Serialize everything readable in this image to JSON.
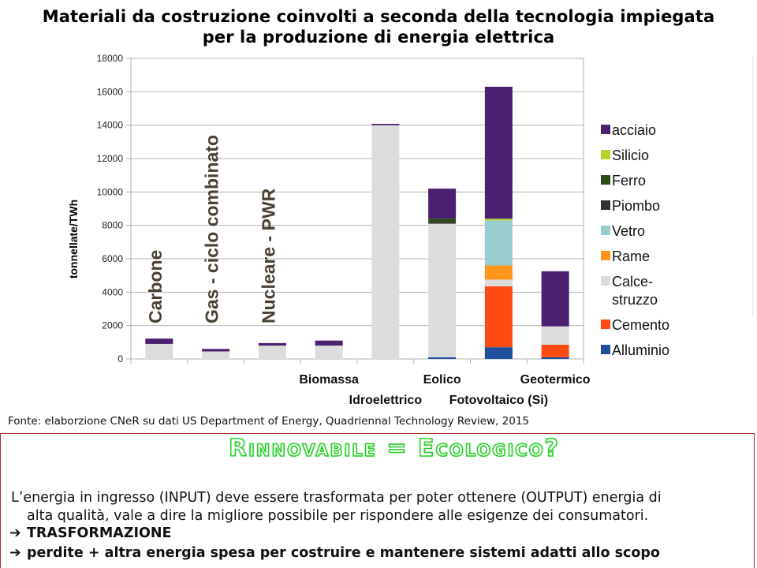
{
  "title_lines": [
    "Materiali da costruzione coinvolti a seconda della tecnologia impiegata",
    "per la produzione di energia elettrica"
  ],
  "chart_data": {
    "type": "bar",
    "stacked": true,
    "ylabel": "tonnellate/TWh",
    "ylim": [
      0,
      18000
    ],
    "yticks": [
      0,
      2000,
      4000,
      6000,
      8000,
      10000,
      12000,
      14000,
      16000,
      18000
    ],
    "grid": true,
    "legend_position": "right",
    "categories": [
      "Carbone",
      "Gas - ciclo combinato",
      "Nucleare - PWR",
      "Biomassa",
      "Idroelettrico",
      "Eolico",
      "Fotovoltaico (Si)",
      "Geotermico"
    ],
    "category_label_placement": [
      "in-plot-vertical",
      "in-plot-vertical",
      "in-plot-vertical",
      "axis-upper",
      "axis-lower",
      "axis-upper",
      "axis-lower",
      "axis-upper"
    ],
    "series": [
      {
        "name": "Alluminio",
        "color": "#1f4e9c",
        "values": [
          0,
          0,
          0,
          0,
          0,
          100,
          700,
          100
        ]
      },
      {
        "name": "Cemento",
        "color": "#ff4a12",
        "values": [
          0,
          0,
          0,
          0,
          0,
          0,
          3650,
          750
        ]
      },
      {
        "name": "Calce-\nstruzzo",
        "color": "#dcdcdc",
        "values": [
          900,
          450,
          800,
          800,
          14000,
          8000,
          400,
          1100
        ]
      },
      {
        "name": "Rame",
        "color": "#ff951c",
        "values": [
          0,
          0,
          0,
          0,
          0,
          0,
          850,
          0
        ]
      },
      {
        "name": "Vetro",
        "color": "#99cccc",
        "values": [
          0,
          0,
          0,
          0,
          0,
          0,
          2700,
          0
        ]
      },
      {
        "name": "Piombo",
        "color": "#333333",
        "values": [
          0,
          0,
          0,
          0,
          0,
          100,
          0,
          0
        ]
      },
      {
        "name": "Ferro",
        "color": "#2e4b13",
        "values": [
          0,
          0,
          0,
          0,
          0,
          200,
          0,
          0
        ]
      },
      {
        "name": "Silicio",
        "color": "#b3d22b",
        "values": [
          0,
          0,
          0,
          0,
          0,
          0,
          100,
          0
        ]
      },
      {
        "name": "acciaio",
        "color": "#4b2070",
        "values": [
          320,
          150,
          150,
          300,
          80,
          1800,
          7900,
          3300
        ]
      }
    ],
    "legend_order": [
      "acciaio",
      "Silicio",
      "Ferro",
      "Piombo",
      "Vetro",
      "Rame",
      "Calce-\nstruzzo",
      "Cemento",
      "Alluminio"
    ]
  },
  "source_note": "Fonte: elaborzione CNeR su dati US Department of Energy, Quadriennal Technology Review, 2015",
  "slogan": "Rinnovabile = Ecologico?",
  "paragraph_lines": [
    "L’energia in ingresso (INPUT) deve essere trasformata per poter ottenere (OUTPUT) energia di",
    "alta qualità, vale a dire la migliore possibile per rispondere alle esigenze dei consumatori."
  ],
  "bullets": [
    {
      "arrow": "➔",
      "text": "TRASFORMAZIONE"
    },
    {
      "arrow": "➔",
      "text": "perdite + altra energia spesa per costruire e mantenere sistemi adatti allo scopo"
    }
  ]
}
